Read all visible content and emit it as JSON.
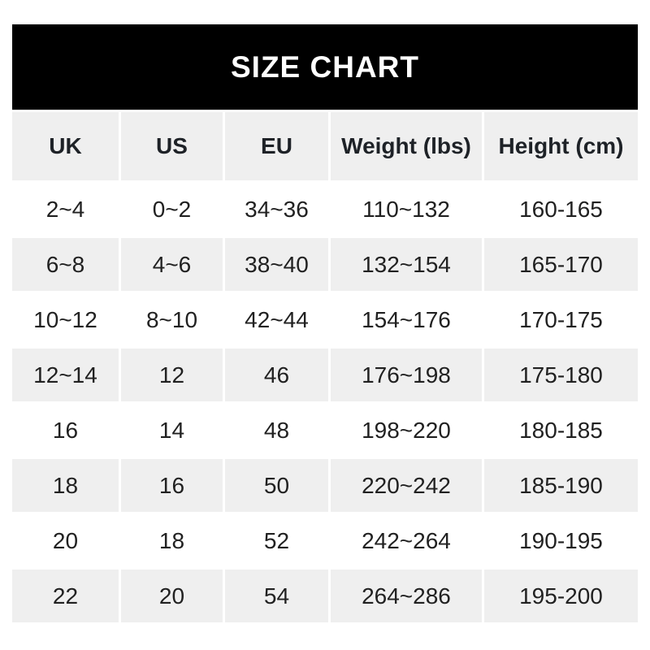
{
  "title": "SIZE CHART",
  "colors": {
    "title_bar_bg": "#000000",
    "title_text": "#ffffff",
    "header_row_bg": "#efefef",
    "row_bg": "#ffffff",
    "row_alt_bg": "#efefef",
    "text": "#212121"
  },
  "chart_data": {
    "type": "table",
    "title": "SIZE CHART",
    "columns": [
      "UK",
      "US",
      "EU",
      "Weight (lbs)",
      "Height (cm)"
    ],
    "rows": [
      [
        "2~4",
        "0~2",
        "34~36",
        "110~132",
        "160-165"
      ],
      [
        "6~8",
        "4~6",
        "38~40",
        "132~154",
        "165-170"
      ],
      [
        "10~12",
        "8~10",
        "42~44",
        "154~176",
        "170-175"
      ],
      [
        "12~14",
        "12",
        "46",
        "176~198",
        "175-180"
      ],
      [
        "16",
        "14",
        "48",
        "198~220",
        "180-185"
      ],
      [
        "18",
        "16",
        "50",
        "220~242",
        "185-190"
      ],
      [
        "20",
        "18",
        "52",
        "242~264",
        "190-195"
      ],
      [
        "22",
        "20",
        "54",
        "264~286",
        "195-200"
      ]
    ],
    "layout": {
      "legend": "none",
      "grid": "alternating-row-shading",
      "separator_weight_column": "~",
      "separator_height_column": "-"
    }
  }
}
